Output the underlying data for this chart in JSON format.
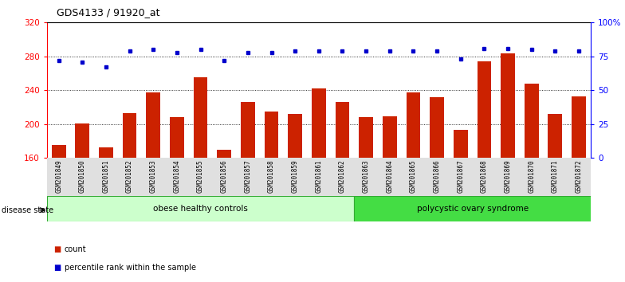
{
  "title": "GDS4133 / 91920_at",
  "samples": [
    "GSM201849",
    "GSM201850",
    "GSM201851",
    "GSM201852",
    "GSM201853",
    "GSM201854",
    "GSM201855",
    "GSM201856",
    "GSM201857",
    "GSM201858",
    "GSM201859",
    "GSM201861",
    "GSM201862",
    "GSM201863",
    "GSM201864",
    "GSM201865",
    "GSM201866",
    "GSM201867",
    "GSM201868",
    "GSM201869",
    "GSM201870",
    "GSM201871",
    "GSM201872"
  ],
  "counts": [
    175,
    201,
    172,
    213,
    237,
    208,
    255,
    170,
    226,
    215,
    212,
    242,
    226,
    208,
    209,
    237,
    232,
    193,
    274,
    284,
    248,
    212,
    233
  ],
  "percentiles": [
    72,
    71,
    67,
    79,
    80,
    78,
    80,
    72,
    78,
    78,
    79,
    79,
    79,
    79,
    79,
    79,
    79,
    73,
    81,
    81,
    80,
    79,
    79
  ],
  "group1_label": "obese healthy controls",
  "group2_label": "polycystic ovary syndrome",
  "group1_count": 13,
  "group2_count": 10,
  "ylim_left": [
    160,
    320
  ],
  "ylim_right": [
    0,
    100
  ],
  "yticks_left": [
    160,
    200,
    240,
    280,
    320
  ],
  "yticks_right": [
    0,
    25,
    50,
    75,
    100
  ],
  "ytick_labels_right": [
    "0",
    "25",
    "50",
    "75",
    "100%"
  ],
  "bar_color": "#cc2200",
  "dot_color": "#0000cc",
  "bar_width": 0.6,
  "group1_bg": "#ccffcc",
  "group2_bg": "#44dd44",
  "legend_count_color": "#cc2200",
  "legend_pct_color": "#0000cc"
}
